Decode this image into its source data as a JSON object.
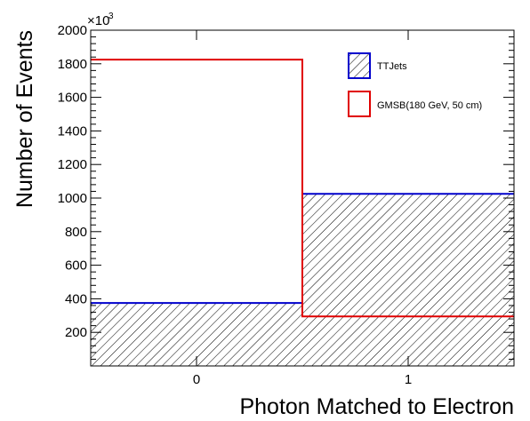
{
  "chart_data": {
    "type": "bar",
    "title": "",
    "xlabel": "Photon Matched to Electron",
    "ylabel": "Number of Events",
    "y_multiplier_base": "×10",
    "y_multiplier_exp": "3",
    "xlim": [
      -0.5,
      1.5
    ],
    "ylim": [
      0,
      2000
    ],
    "categories": [
      "0",
      "1"
    ],
    "x_ticks": [
      "0",
      "1"
    ],
    "y_ticks": [
      "200",
      "400",
      "600",
      "800",
      "1000",
      "1200",
      "1400",
      "1600",
      "1800",
      "2000"
    ],
    "series": [
      {
        "name": "TTJets",
        "values": [
          375,
          1025
        ],
        "color": "#0000cc",
        "style": "hatched"
      },
      {
        "name": "GMSB(180 GeV, 50 cm)",
        "values": [
          1825,
          295
        ],
        "color": "#e00000",
        "style": "line"
      }
    ],
    "legend_position": "top-right",
    "grid": false
  }
}
